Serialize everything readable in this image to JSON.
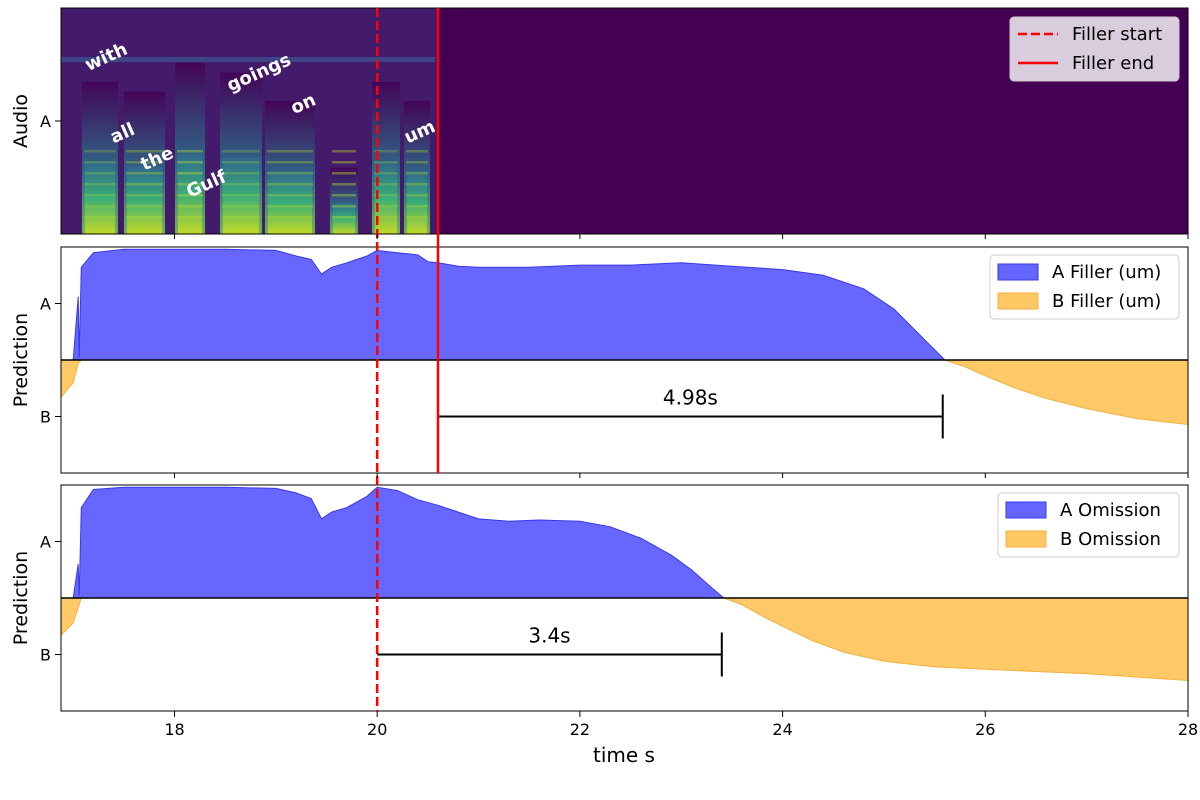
{
  "chart_data": {
    "type": "area",
    "xlabel": "time s",
    "xlim": [
      16.88,
      28
    ],
    "x_ticks": [
      18,
      20,
      22,
      24,
      26,
      28
    ],
    "filler_start": 20.0,
    "filler_end": 20.6,
    "colors": {
      "A": "#6464ff",
      "A_edge": "#3838e8",
      "B": "#ffc864",
      "B_edge": "#f4b040",
      "marker": "#ff0000"
    },
    "panels": [
      {
        "name": "audio",
        "type": "heatmap",
        "ylabel": "Audio",
        "y_tick": "A",
        "audio_end": 20.6,
        "legend": [
          {
            "label": "Filler start",
            "style": "dashed"
          },
          {
            "label": "Filler end",
            "style": "solid"
          }
        ],
        "words": [
          {
            "text": "with",
            "t": 17.15,
            "level": 0.72,
            "angle": -24
          },
          {
            "text": "all",
            "t": 17.4,
            "level": 0.4,
            "angle": -24
          },
          {
            "text": "the",
            "t": 17.7,
            "level": 0.28,
            "angle": -24
          },
          {
            "text": "Gulf",
            "t": 18.15,
            "level": 0.16,
            "angle": -24
          },
          {
            "text": "goings",
            "t": 18.55,
            "level": 0.63,
            "angle": -24
          },
          {
            "text": "on",
            "t": 19.18,
            "level": 0.53,
            "angle": -24
          },
          {
            "text": "um",
            "t": 20.3,
            "level": 0.4,
            "angle": -24
          }
        ]
      },
      {
        "name": "filler",
        "ylabel": "Prediction",
        "y_ticks": [
          "A",
          "B"
        ],
        "legend": [
          {
            "label": "A Filler (um)",
            "series": "A"
          },
          {
            "label": "B Filler (um)",
            "series": "B"
          }
        ],
        "series": [
          {
            "name": "A Filler (um)",
            "x": [
              16.88,
              17.0,
              17.05,
              17.06,
              17.08,
              17.2,
              17.5,
              18.0,
              18.5,
              19.0,
              19.2,
              19.35,
              19.45,
              19.55,
              19.7,
              19.8,
              19.9,
              20.0,
              20.2,
              20.4,
              20.5,
              20.6,
              20.8,
              21.0,
              21.5,
              22.0,
              22.5,
              23.0,
              23.5,
              24.0,
              24.4,
              24.8,
              25.1,
              25.4,
              25.6,
              25.8,
              26.5,
              27.5,
              28.0
            ],
            "y": [
              0,
              0,
              0.56,
              0.02,
              0.82,
              0.95,
              0.98,
              0.98,
              0.98,
              0.97,
              0.92,
              0.89,
              0.76,
              0.82,
              0.86,
              0.89,
              0.92,
              0.97,
              0.95,
              0.93,
              0.87,
              0.86,
              0.83,
              0.82,
              0.82,
              0.84,
              0.84,
              0.86,
              0.83,
              0.8,
              0.75,
              0.63,
              0.45,
              0.18,
              0,
              0,
              0,
              0,
              0
            ]
          },
          {
            "name": "B Filler (um)",
            "x": [
              16.88,
              17.0,
              17.05,
              17.08,
              17.2,
              18.0,
              20.0,
              22.0,
              24.0,
              25.0,
              25.3,
              25.6,
              25.8,
              26.0,
              26.3,
              26.6,
              27.0,
              27.5,
              28.0
            ],
            "y": [
              0.33,
              0.2,
              0.03,
              0,
              0,
              0,
              0,
              0,
              0,
              0,
              0,
              0,
              0.06,
              0.14,
              0.25,
              0.34,
              0.43,
              0.52,
              0.57
            ]
          }
        ],
        "annotation": {
          "text": "4.98s",
          "x_start": 20.6,
          "x_end": 25.58
        }
      },
      {
        "name": "omission",
        "ylabel": "Prediction",
        "y_ticks": [
          "A",
          "B"
        ],
        "legend": [
          {
            "label": "A Omission",
            "series": "A"
          },
          {
            "label": "B Omission",
            "series": "B"
          }
        ],
        "series": [
          {
            "name": "A Omission",
            "x": [
              16.88,
              17.0,
              17.05,
              17.06,
              17.08,
              17.2,
              17.5,
              18.0,
              18.5,
              19.0,
              19.2,
              19.35,
              19.45,
              19.55,
              19.7,
              19.8,
              19.9,
              20.0,
              20.2,
              20.4,
              20.6,
              20.8,
              21.0,
              21.3,
              21.6,
              22.0,
              22.3,
              22.6,
              22.9,
              23.1,
              23.3,
              23.42,
              23.6,
              24.0,
              26.0,
              28.0
            ],
            "y": [
              0,
              0,
              0.3,
              0.02,
              0.8,
              0.96,
              0.98,
              0.98,
              0.98,
              0.97,
              0.93,
              0.88,
              0.7,
              0.76,
              0.8,
              0.85,
              0.9,
              0.98,
              0.95,
              0.87,
              0.82,
              0.76,
              0.7,
              0.68,
              0.69,
              0.68,
              0.63,
              0.53,
              0.38,
              0.25,
              0.09,
              0,
              0,
              0,
              0,
              0
            ]
          },
          {
            "name": "B Omission",
            "x": [
              16.88,
              17.0,
              17.08,
              17.2,
              18.0,
              20.0,
              22.0,
              23.0,
              23.42,
              23.6,
              23.8,
              24.0,
              24.3,
              24.6,
              25.0,
              25.5,
              26.0,
              27.0,
              28.0
            ],
            "y": [
              0.33,
              0.22,
              0,
              0,
              0,
              0,
              0,
              0,
              0,
              0.06,
              0.16,
              0.25,
              0.38,
              0.48,
              0.56,
              0.61,
              0.63,
              0.67,
              0.73
            ]
          }
        ],
        "annotation": {
          "text": "3.4s",
          "x_start": 20.0,
          "x_end": 23.4
        }
      }
    ]
  }
}
